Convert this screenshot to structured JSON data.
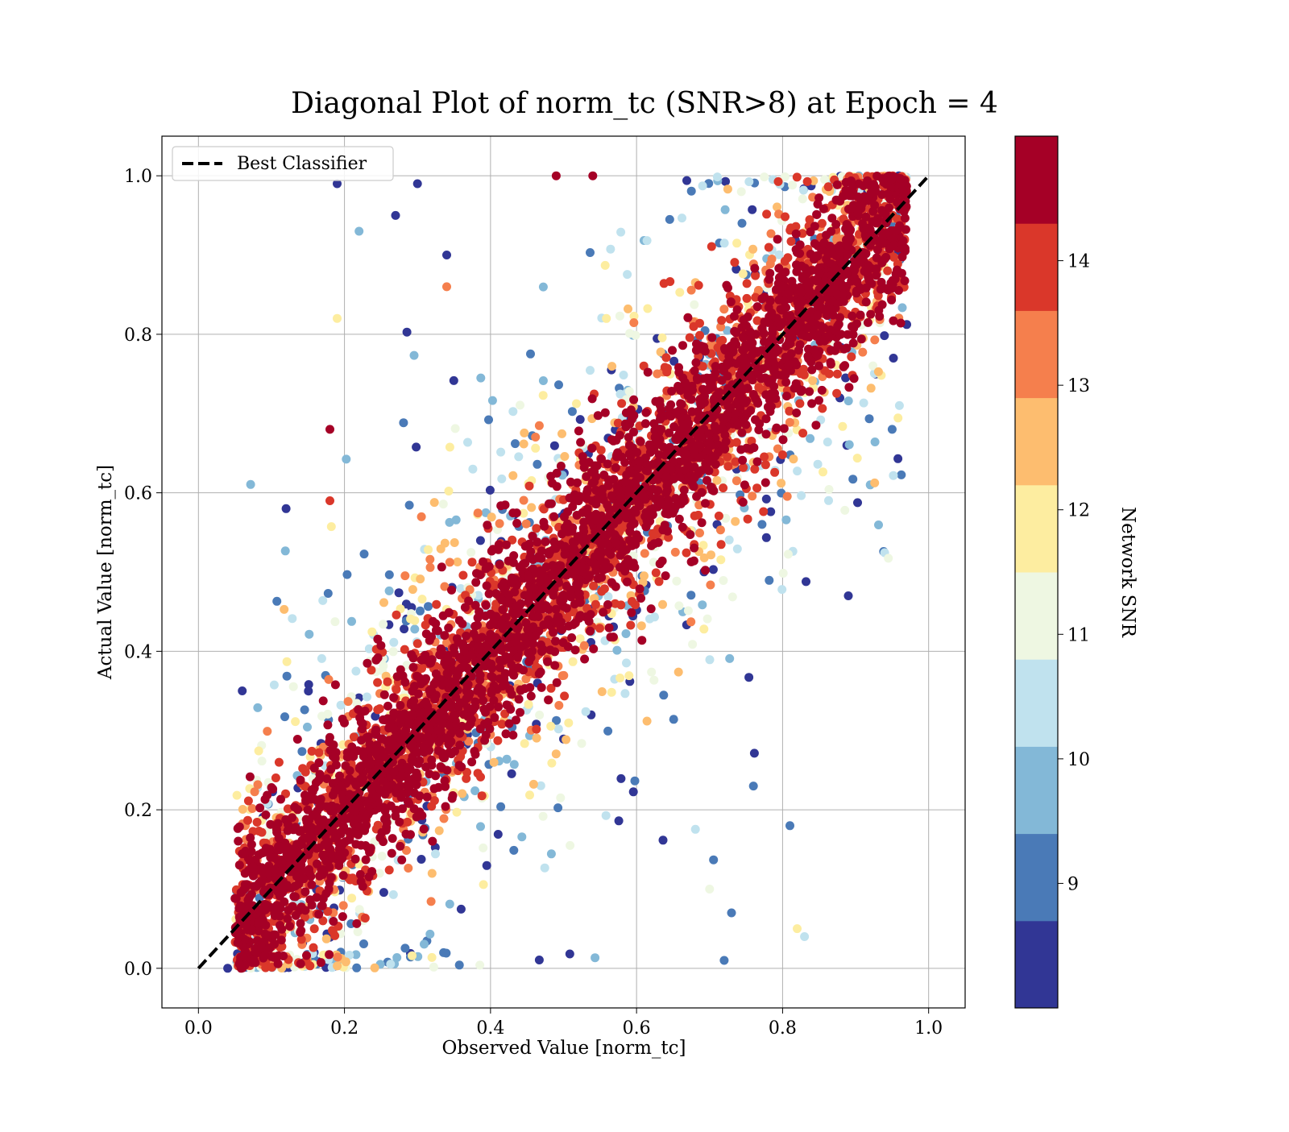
{
  "chart_data": {
    "type": "scatter",
    "title": "Diagonal Plot of norm_tc (SNR>8) at Epoch = 4",
    "xlabel": "Observed Value [norm_tc]",
    "ylabel": "Actual Value [norm_tc]",
    "xlim": [
      -0.05,
      1.05
    ],
    "ylim": [
      -0.05,
      1.05
    ],
    "xticks": [
      "0.0",
      "0.2",
      "0.4",
      "0.6",
      "0.8",
      "1.0"
    ],
    "yticks": [
      "0.0",
      "0.2",
      "0.4",
      "0.6",
      "0.8",
      "1.0"
    ],
    "grid": true,
    "legend": {
      "placement": "top-left",
      "entries": [
        "Best Classifier"
      ]
    },
    "reference_line": {
      "name": "Best Classifier",
      "x": [
        0.0,
        1.0
      ],
      "y": [
        0.0,
        1.0
      ],
      "style": "dashed",
      "color": "#000000"
    },
    "colorbar": {
      "label": "Network SNR",
      "range": [
        8.0,
        15.0
      ],
      "ticks": [
        "9",
        "10",
        "11",
        "12",
        "13",
        "14"
      ],
      "colors": [
        "#313695",
        "#4a7ab7",
        "#83b8d7",
        "#c0e2ee",
        "#eef7e2",
        "#fdeda0",
        "#fdbd6f",
        "#f57f4d",
        "#da372a",
        "#a50026"
      ]
    },
    "scatter_description_values": {
      "observed_range": [
        0.04,
        0.97
      ],
      "actual_range": [
        0.0,
        1.0
      ],
      "snr_range": [
        8.0,
        15.0
      ]
    },
    "points": [
      {
        "x": 0.19,
        "y": 0.99,
        "snr": 8.5
      },
      {
        "x": 0.12,
        "y": 0.58,
        "snr": 8.5
      },
      {
        "x": 0.89,
        "y": 0.47,
        "snr": 8.5
      },
      {
        "x": 0.81,
        "y": 0.18,
        "snr": 9.2
      },
      {
        "x": 0.76,
        "y": 0.23,
        "snr": 9.2
      },
      {
        "x": 0.22,
        "y": 0.93,
        "snr": 9.5
      },
      {
        "x": 0.92,
        "y": 0.61,
        "snr": 9.8
      },
      {
        "x": 0.06,
        "y": 0.35,
        "snr": 8.5
      },
      {
        "x": 0.04,
        "y": 0.0,
        "snr": 8.5
      },
      {
        "x": 0.83,
        "y": 0.04,
        "snr": 10.5
      },
      {
        "x": 0.82,
        "y": 0.05,
        "snr": 12.0
      },
      {
        "x": 0.19,
        "y": 0.82,
        "snr": 12.0
      },
      {
        "x": 0.18,
        "y": 0.68,
        "snr": 14.5
      },
      {
        "x": 0.18,
        "y": 0.59,
        "snr": 13.8
      },
      {
        "x": 0.34,
        "y": 0.86,
        "snr": 13.2
      },
      {
        "x": 0.34,
        "y": 0.9,
        "snr": 8.5
      },
      {
        "x": 0.27,
        "y": 0.95,
        "snr": 8.5
      },
      {
        "x": 0.3,
        "y": 0.99,
        "snr": 8.5
      },
      {
        "x": 0.49,
        "y": 1.0,
        "snr": 14.5
      },
      {
        "x": 0.54,
        "y": 1.0,
        "snr": 14.5
      },
      {
        "x": 0.96,
        "y": 0.71,
        "snr": 10.5
      },
      {
        "x": 0.95,
        "y": 0.68,
        "snr": 9.0
      },
      {
        "x": 0.88,
        "y": 0.8,
        "snr": 14.5
      },
      {
        "x": 0.73,
        "y": 0.07,
        "snr": 9.0
      },
      {
        "x": 0.7,
        "y": 0.1,
        "snr": 11.0
      },
      {
        "x": 0.72,
        "y": 0.01,
        "snr": 9.0
      }
    ]
  }
}
